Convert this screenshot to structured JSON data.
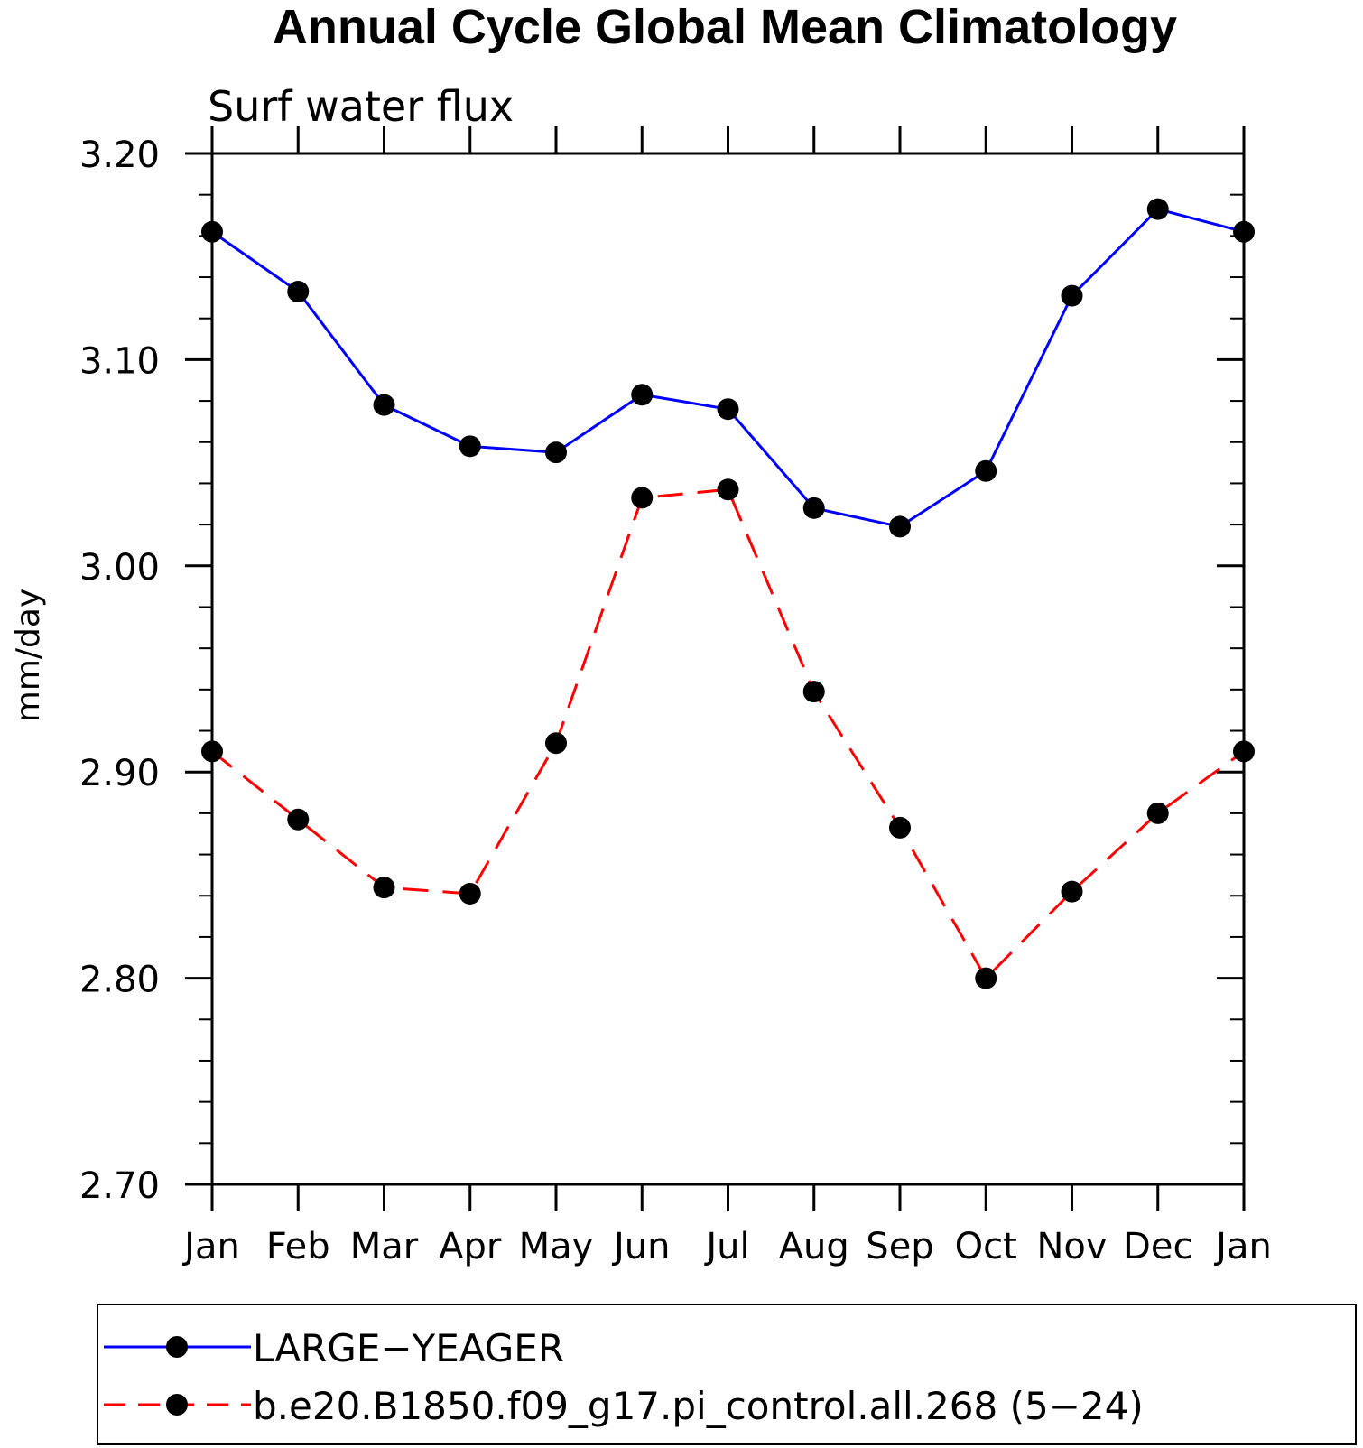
{
  "chart_data": {
    "type": "line",
    "title": "Annual Cycle Global Mean Climatology",
    "subtitle": "Surf water flux",
    "xlabel": "",
    "ylabel": "mm/day",
    "categories": [
      "Jan",
      "Feb",
      "Mar",
      "Apr",
      "May",
      "Jun",
      "Jul",
      "Aug",
      "Sep",
      "Oct",
      "Nov",
      "Dec",
      "Jan"
    ],
    "ylim": [
      2.7,
      3.2
    ],
    "yticks": [
      "2.70",
      "2.80",
      "2.90",
      "3.00",
      "3.10",
      "3.20"
    ],
    "grid": false,
    "legend_position": "bottom",
    "series": [
      {
        "name": "LARGE−YEAGER",
        "color": "#0000ff",
        "dash": "solid",
        "marker": "filled-circle",
        "values": [
          3.162,
          3.133,
          3.078,
          3.058,
          3.055,
          3.083,
          3.076,
          3.028,
          3.019,
          3.046,
          3.131,
          3.173,
          3.162
        ]
      },
      {
        "name": "b.e20.B1850.f09_g17.pi_control.all.268 (5−24)",
        "color": "#ff0000",
        "dash": "dashed",
        "marker": "filled-circle",
        "values": [
          2.91,
          2.877,
          2.844,
          2.841,
          2.914,
          3.033,
          3.037,
          2.939,
          2.873,
          2.8,
          2.842,
          2.88,
          2.91
        ]
      }
    ]
  }
}
